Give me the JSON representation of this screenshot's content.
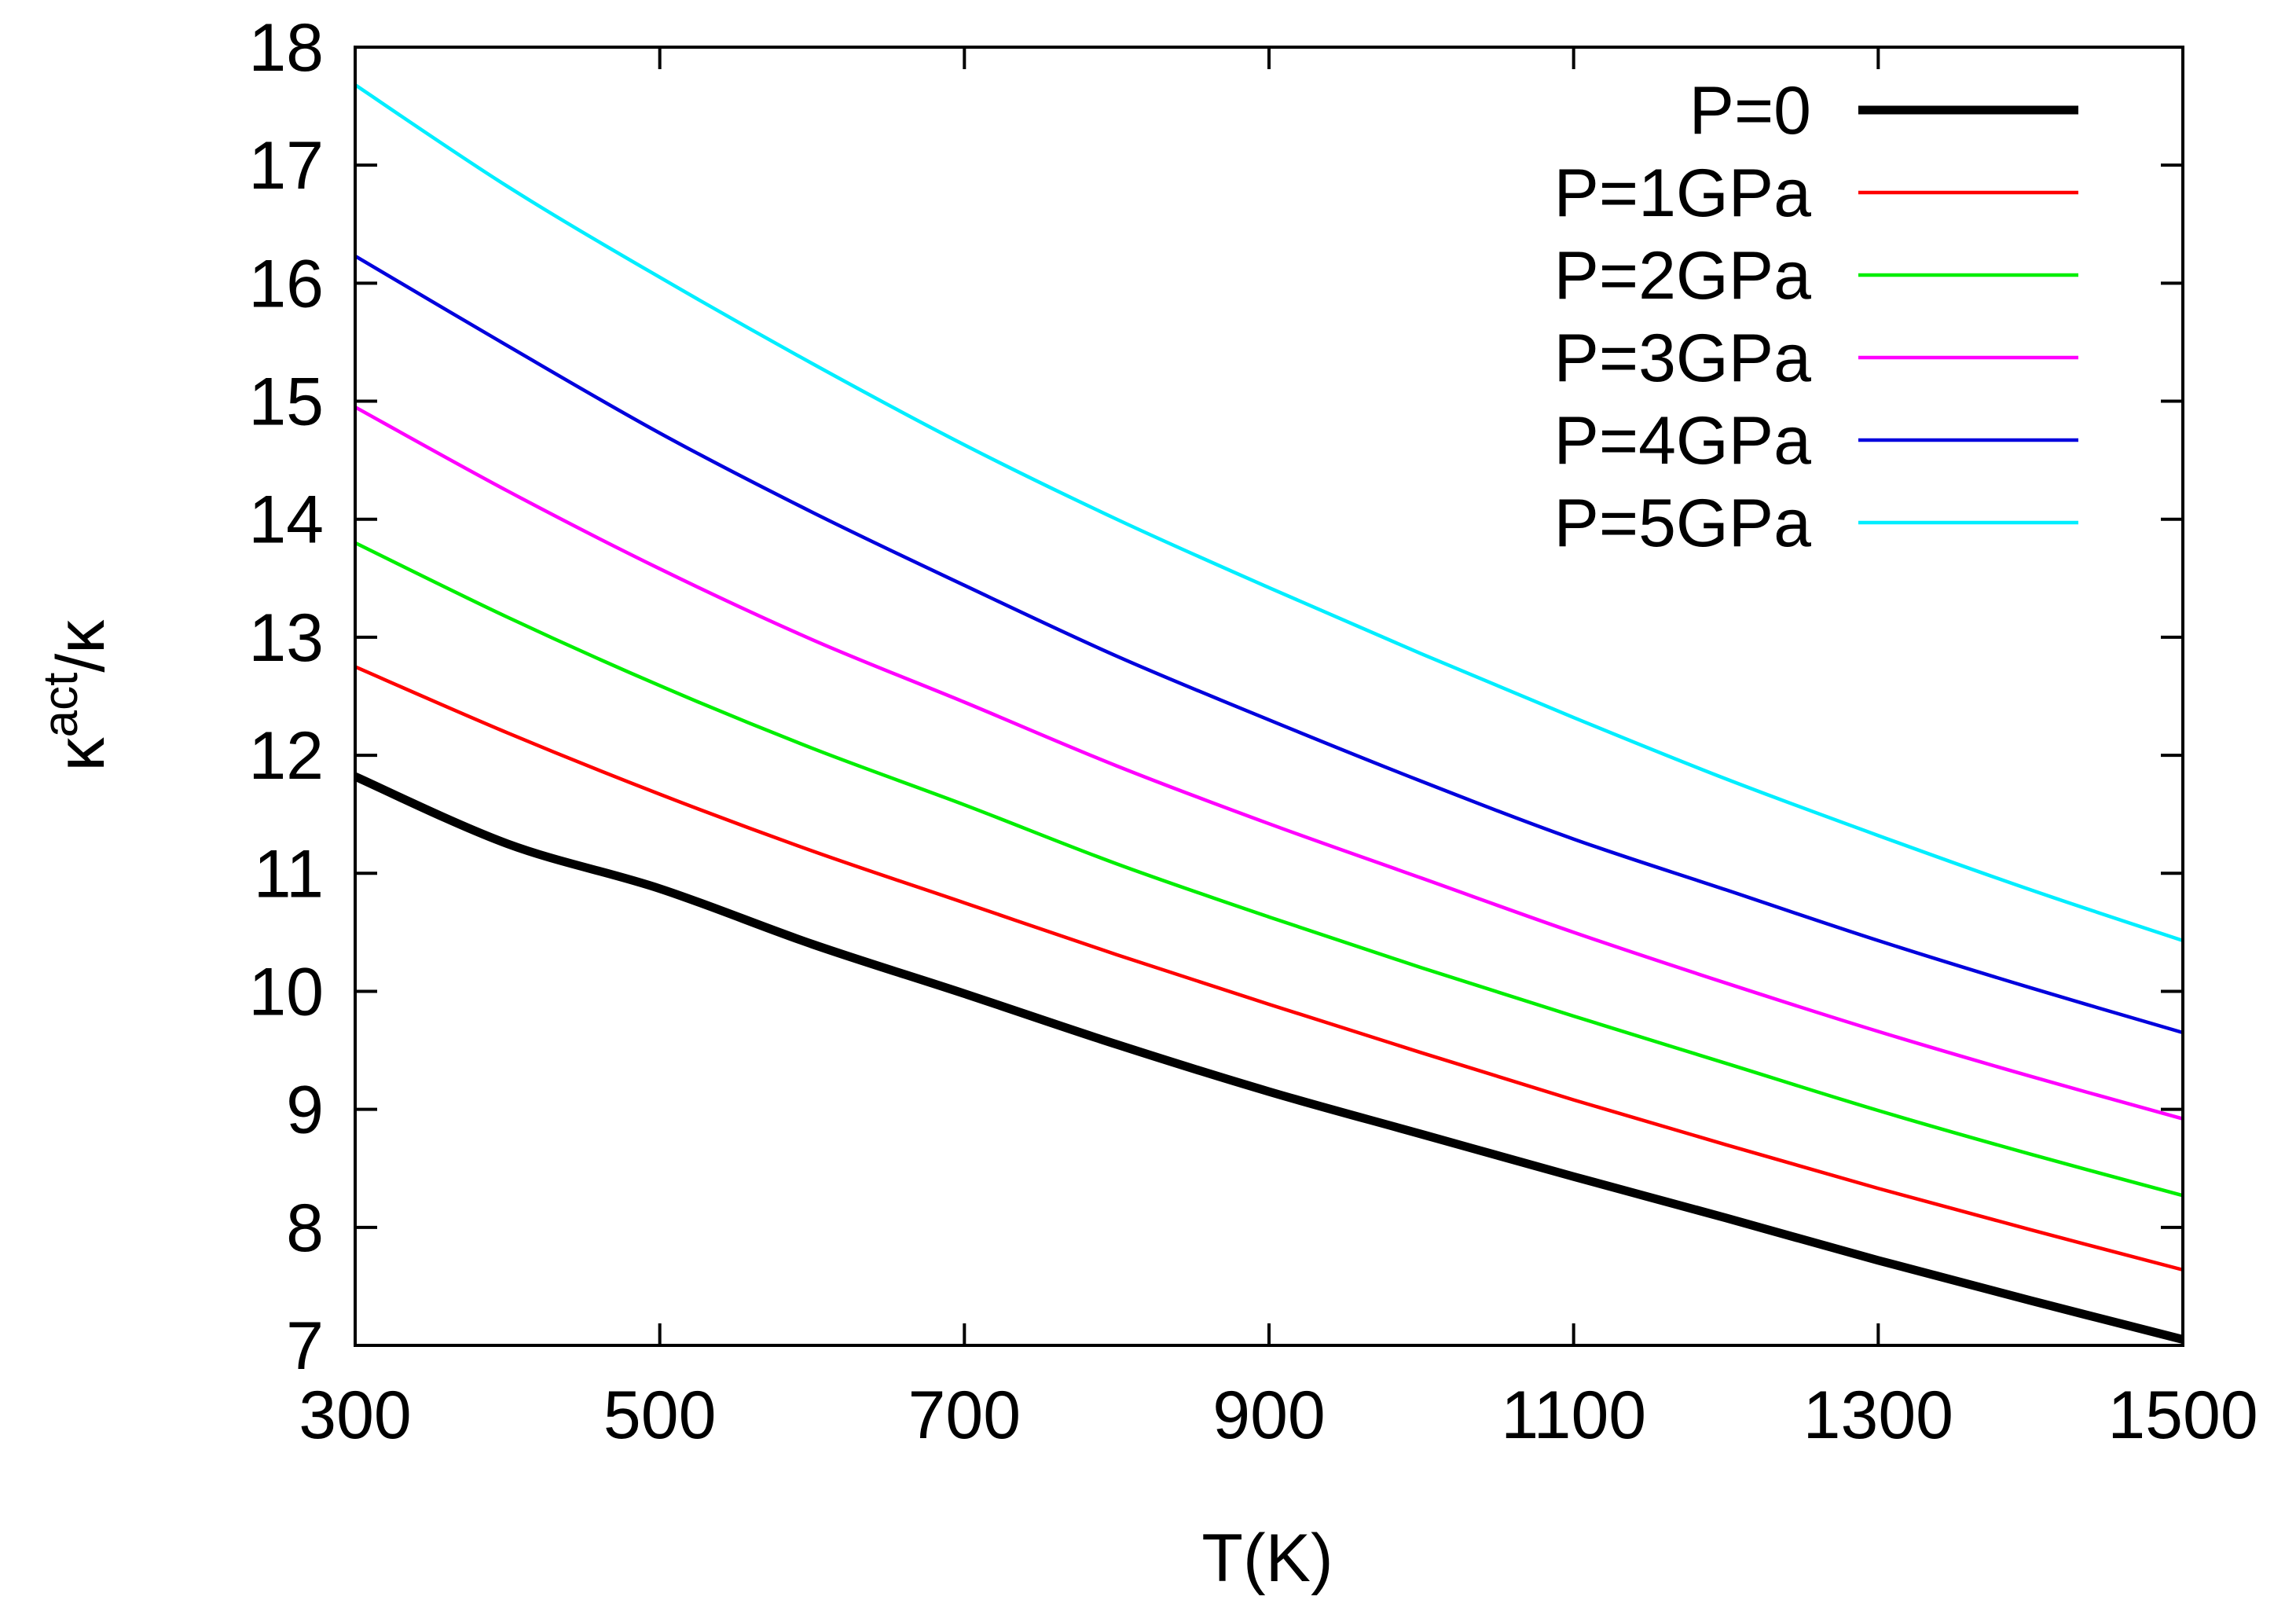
{
  "chart_data": {
    "type": "line",
    "title": "",
    "xlabel": "T(K)",
    "ylabel": {
      "base": "κ",
      "sup": "act",
      "sep": "/",
      "den": "κ"
    },
    "xlim": [
      300,
      1500
    ],
    "ylim": [
      7,
      18
    ],
    "xticks": [
      300,
      500,
      700,
      900,
      1100,
      1300,
      1500
    ],
    "yticks": [
      7,
      8,
      9,
      10,
      11,
      12,
      13,
      14,
      15,
      16,
      17,
      18
    ],
    "grid": false,
    "legend_position": "top-right",
    "x": [
      300,
      400,
      500,
      600,
      700,
      800,
      900,
      1000,
      1100,
      1200,
      1300,
      1400,
      1500
    ],
    "series": [
      {
        "name": "P=0",
        "color": "#000000",
        "width": "thick",
        "values": [
          11.82,
          11.25,
          10.87,
          10.4,
          9.98,
          9.55,
          9.15,
          8.79,
          8.43,
          8.08,
          7.72,
          7.38,
          7.05
        ]
      },
      {
        "name": "P=1GPa",
        "color": "#ff0000",
        "width": "normal",
        "values": [
          12.75,
          12.19,
          11.67,
          11.19,
          10.75,
          10.31,
          9.89,
          9.48,
          9.08,
          8.7,
          8.33,
          7.98,
          7.64
        ]
      },
      {
        "name": "P=2GPa",
        "color": "#00ee00",
        "width": "normal",
        "values": [
          13.8,
          13.17,
          12.59,
          12.06,
          11.58,
          11.08,
          10.63,
          10.2,
          9.79,
          9.39,
          8.99,
          8.62,
          8.27
        ]
      },
      {
        "name": "P=3GPa",
        "color": "#ff00ff",
        "width": "normal",
        "values": [
          14.95,
          14.24,
          13.58,
          12.98,
          12.45,
          11.91,
          11.42,
          10.96,
          10.5,
          10.07,
          9.66,
          9.28,
          8.92
        ]
      },
      {
        "name": "P=4GPa",
        "color": "#0000dd",
        "width": "normal",
        "values": [
          16.23,
          15.47,
          14.73,
          14.06,
          13.44,
          12.84,
          12.3,
          11.78,
          11.29,
          10.86,
          10.43,
          10.03,
          9.65
        ]
      },
      {
        "name": "P=5GPa",
        "color": "#00eeff",
        "width": "normal",
        "values": [
          17.68,
          16.82,
          16.05,
          15.32,
          14.63,
          14.0,
          13.42,
          12.86,
          12.32,
          11.8,
          11.32,
          10.86,
          10.43
        ]
      }
    ]
  }
}
